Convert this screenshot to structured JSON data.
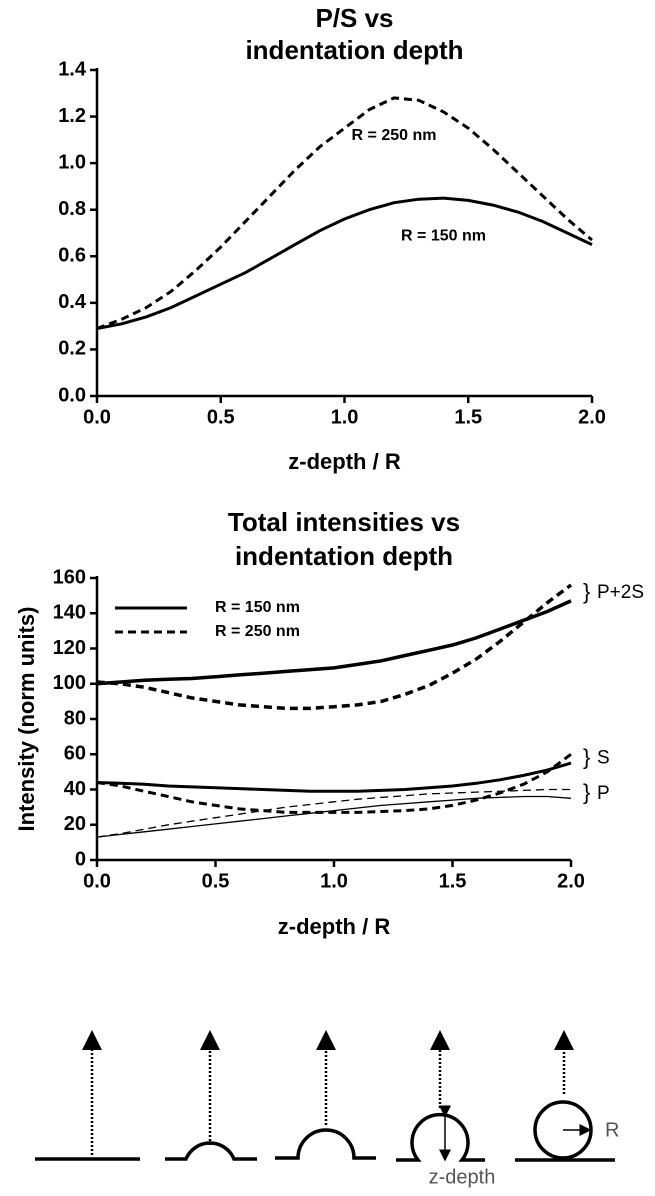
{
  "chart_data": [
    {
      "type": "line",
      "title": [
        "P/S vs",
        "indentation depth"
      ],
      "xlabel": "z-depth / R",
      "x": [
        0,
        0.1,
        0.2,
        0.3,
        0.4,
        0.5,
        0.6,
        0.7,
        0.8,
        0.9,
        1.0,
        1.1,
        1.2,
        1.3,
        1.4,
        1.5,
        1.6,
        1.7,
        1.8,
        1.9,
        2.0
      ],
      "series": [
        {
          "name": "R = 150 nm",
          "color": "#000000",
          "dash": false,
          "values": [
            0.29,
            0.31,
            0.34,
            0.38,
            0.43,
            0.48,
            0.53,
            0.59,
            0.65,
            0.71,
            0.76,
            0.8,
            0.83,
            0.845,
            0.85,
            0.84,
            0.82,
            0.79,
            0.75,
            0.7,
            0.65
          ]
        },
        {
          "name": "R = 250 nm",
          "color": "#000000",
          "dash": true,
          "values": [
            0.29,
            0.33,
            0.38,
            0.45,
            0.54,
            0.64,
            0.75,
            0.86,
            0.97,
            1.07,
            1.15,
            1.23,
            1.28,
            1.27,
            1.22,
            1.15,
            1.06,
            0.96,
            0.86,
            0.76,
            0.67
          ]
        }
      ],
      "xlim": [
        0,
        2
      ],
      "xticks": [
        {
          "value": 0,
          "label": "0.0"
        },
        {
          "value": 0.5,
          "label": "0.5"
        },
        {
          "value": 1,
          "label": "1.0"
        },
        {
          "value": 1.5,
          "label": "1.5"
        },
        {
          "value": 2,
          "label": "2.0"
        }
      ],
      "ylim": [
        0,
        1.4
      ],
      "yticks": [
        {
          "value": 0,
          "label": "0.0"
        },
        {
          "value": 0.2,
          "label": "0.2"
        },
        {
          "value": 0.4,
          "label": "0.4"
        },
        {
          "value": 0.6,
          "label": "0.6"
        },
        {
          "value": 0.8,
          "label": "0.8"
        },
        {
          "value": 1,
          "label": "1.0"
        },
        {
          "value": 1.2,
          "label": "1.2"
        },
        {
          "value": 1.4,
          "label": "1.4"
        }
      ]
    },
    {
      "type": "line",
      "title": [
        "Total intensities vs",
        "indentation depth"
      ],
      "xlabel": "z-depth / R",
      "ylabel": "Intensity (norm units)",
      "x": [
        0,
        0.1,
        0.2,
        0.3,
        0.4,
        0.5,
        0.6,
        0.7,
        0.8,
        0.9,
        1.0,
        1.1,
        1.2,
        1.3,
        1.4,
        1.5,
        1.6,
        1.7,
        1.8,
        1.9,
        2.0
      ],
      "legend": [
        {
          "label": "R = 150 nm",
          "dash": false
        },
        {
          "label": "R = 250 nm",
          "dash": true
        }
      ],
      "group_labels": [
        "P+2S",
        "S",
        "P"
      ],
      "series": [
        {
          "color": "#000000",
          "dash": false,
          "width": 3.5,
          "values": [
            100,
            101,
            102,
            102.5,
            103,
            104,
            105,
            106,
            107,
            108,
            109,
            111,
            113,
            116,
            119,
            122,
            126,
            131,
            136,
            141,
            147
          ]
        },
        {
          "color": "#000000",
          "dash": true,
          "width": 3.5,
          "values": [
            101,
            100,
            98,
            95,
            92,
            90,
            88,
            87,
            86,
            86,
            87,
            88,
            90,
            94,
            99,
            106,
            114,
            124,
            135,
            146,
            156
          ]
        },
        {
          "color": "#000000",
          "dash": false,
          "width": 3,
          "values": [
            44,
            43.5,
            43,
            42,
            41.5,
            41,
            40.5,
            40,
            39.5,
            39,
            39,
            39,
            39.5,
            40,
            41,
            42,
            43.5,
            45.5,
            48,
            51,
            55
          ]
        },
        {
          "color": "#000000",
          "dash": true,
          "width": 3,
          "values": [
            44,
            42,
            39,
            36,
            33,
            31,
            29,
            28,
            27,
            27,
            27,
            27,
            27.5,
            28,
            29,
            31,
            34,
            38,
            43,
            50,
            60
          ]
        },
        {
          "color": "#000000",
          "dash": false,
          "width": 1.3,
          "values": [
            13,
            14.5,
            16,
            17.5,
            19,
            20.5,
            22,
            23.5,
            25,
            26.5,
            28,
            29.5,
            31,
            32,
            33,
            34,
            35,
            35.5,
            36,
            36,
            35
          ]
        },
        {
          "color": "#000000",
          "dash": true,
          "width": 1.3,
          "values": [
            13,
            15,
            17.5,
            20,
            22,
            24,
            26,
            28,
            30,
            31.5,
            33,
            34.5,
            35.5,
            36.5,
            37.5,
            38,
            38.5,
            39,
            39.5,
            40,
            40
          ]
        }
      ],
      "xlim": [
        0,
        2
      ],
      "xticks": [
        {
          "value": 0,
          "label": "0.0"
        },
        {
          "value": 0.5,
          "label": "0.5"
        },
        {
          "value": 1,
          "label": "1.0"
        },
        {
          "value": 1.5,
          "label": "1.5"
        },
        {
          "value": 2,
          "label": "2.0"
        }
      ],
      "ylim": [
        0,
        160
      ],
      "yticks": [
        0,
        20,
        40,
        60,
        80,
        100,
        120,
        140,
        160
      ]
    }
  ],
  "diagram": {
    "radius_label": "R",
    "depth_label": "z-depth"
  }
}
